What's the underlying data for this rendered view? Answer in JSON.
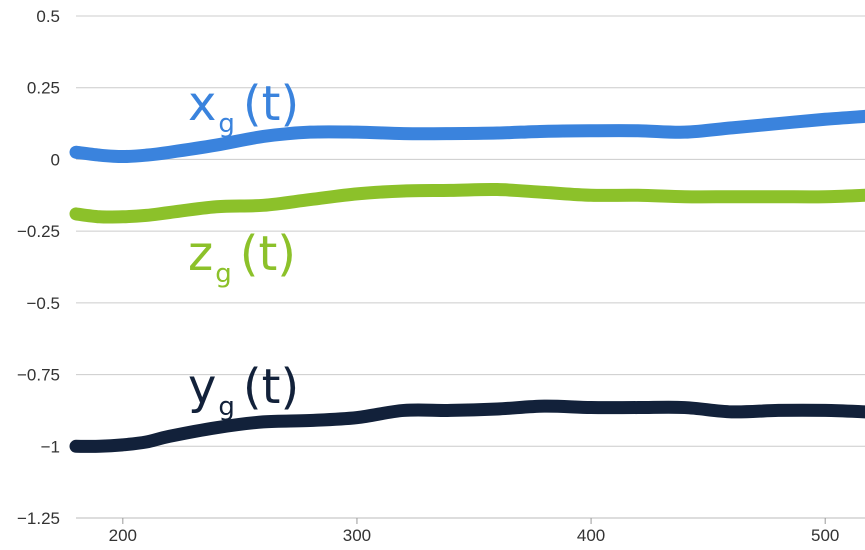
{
  "chart_data": {
    "type": "line",
    "title": "",
    "xlabel": "",
    "ylabel": "",
    "xlim": [
      180,
      517
    ],
    "ylim": [
      -1.25,
      0.5
    ],
    "x_ticks": [
      200,
      300,
      400,
      500
    ],
    "x_tick_labels": [
      "200",
      "300",
      "400",
      "500"
    ],
    "y_ticks": [
      0.5,
      0.25,
      0,
      -0.25,
      -0.5,
      -0.75,
      -1,
      -1.25
    ],
    "y_tick_labels": [
      "0.5",
      "0.25",
      "0",
      "−0.25",
      "−0.5",
      "−0.75",
      "−1",
      "−1.25"
    ],
    "grid": true,
    "legend": "none",
    "series": [
      {
        "name": "x",
        "subscript": "g",
        "suffix": "(t)",
        "color": "#3a83dd",
        "x": [
          180,
          190,
          200,
          210,
          220,
          240,
          260,
          280,
          300,
          320,
          340,
          360,
          380,
          400,
          420,
          440,
          460,
          480,
          500,
          517
        ],
        "y": [
          0.025,
          0.015,
          0.01,
          0.015,
          0.025,
          0.05,
          0.08,
          0.095,
          0.095,
          0.09,
          0.09,
          0.092,
          0.098,
          0.1,
          0.1,
          0.095,
          0.11,
          0.125,
          0.14,
          0.15
        ]
      },
      {
        "name": "z",
        "subscript": "g",
        "suffix": "(t)",
        "color": "#8cc12a",
        "x": [
          180,
          190,
          200,
          210,
          220,
          240,
          260,
          280,
          300,
          320,
          340,
          360,
          380,
          400,
          420,
          440,
          460,
          480,
          500,
          517
        ],
        "y": [
          -0.19,
          -0.2,
          -0.2,
          -0.195,
          -0.185,
          -0.165,
          -0.16,
          -0.14,
          -0.12,
          -0.11,
          -0.108,
          -0.105,
          -0.115,
          -0.125,
          -0.125,
          -0.13,
          -0.13,
          -0.13,
          -0.13,
          -0.125
        ]
      },
      {
        "name": "y",
        "subscript": "g",
        "suffix": "(t)",
        "color": "#12213a",
        "x": [
          180,
          190,
          200,
          210,
          220,
          240,
          260,
          280,
          300,
          320,
          340,
          360,
          380,
          400,
          420,
          440,
          460,
          480,
          500,
          517
        ],
        "y": [
          -1.0,
          -1.0,
          -0.995,
          -0.985,
          -0.965,
          -0.935,
          -0.915,
          -0.91,
          -0.9,
          -0.875,
          -0.875,
          -0.87,
          -0.86,
          -0.865,
          -0.865,
          -0.865,
          -0.88,
          -0.875,
          -0.875,
          -0.88
        ]
      }
    ]
  }
}
